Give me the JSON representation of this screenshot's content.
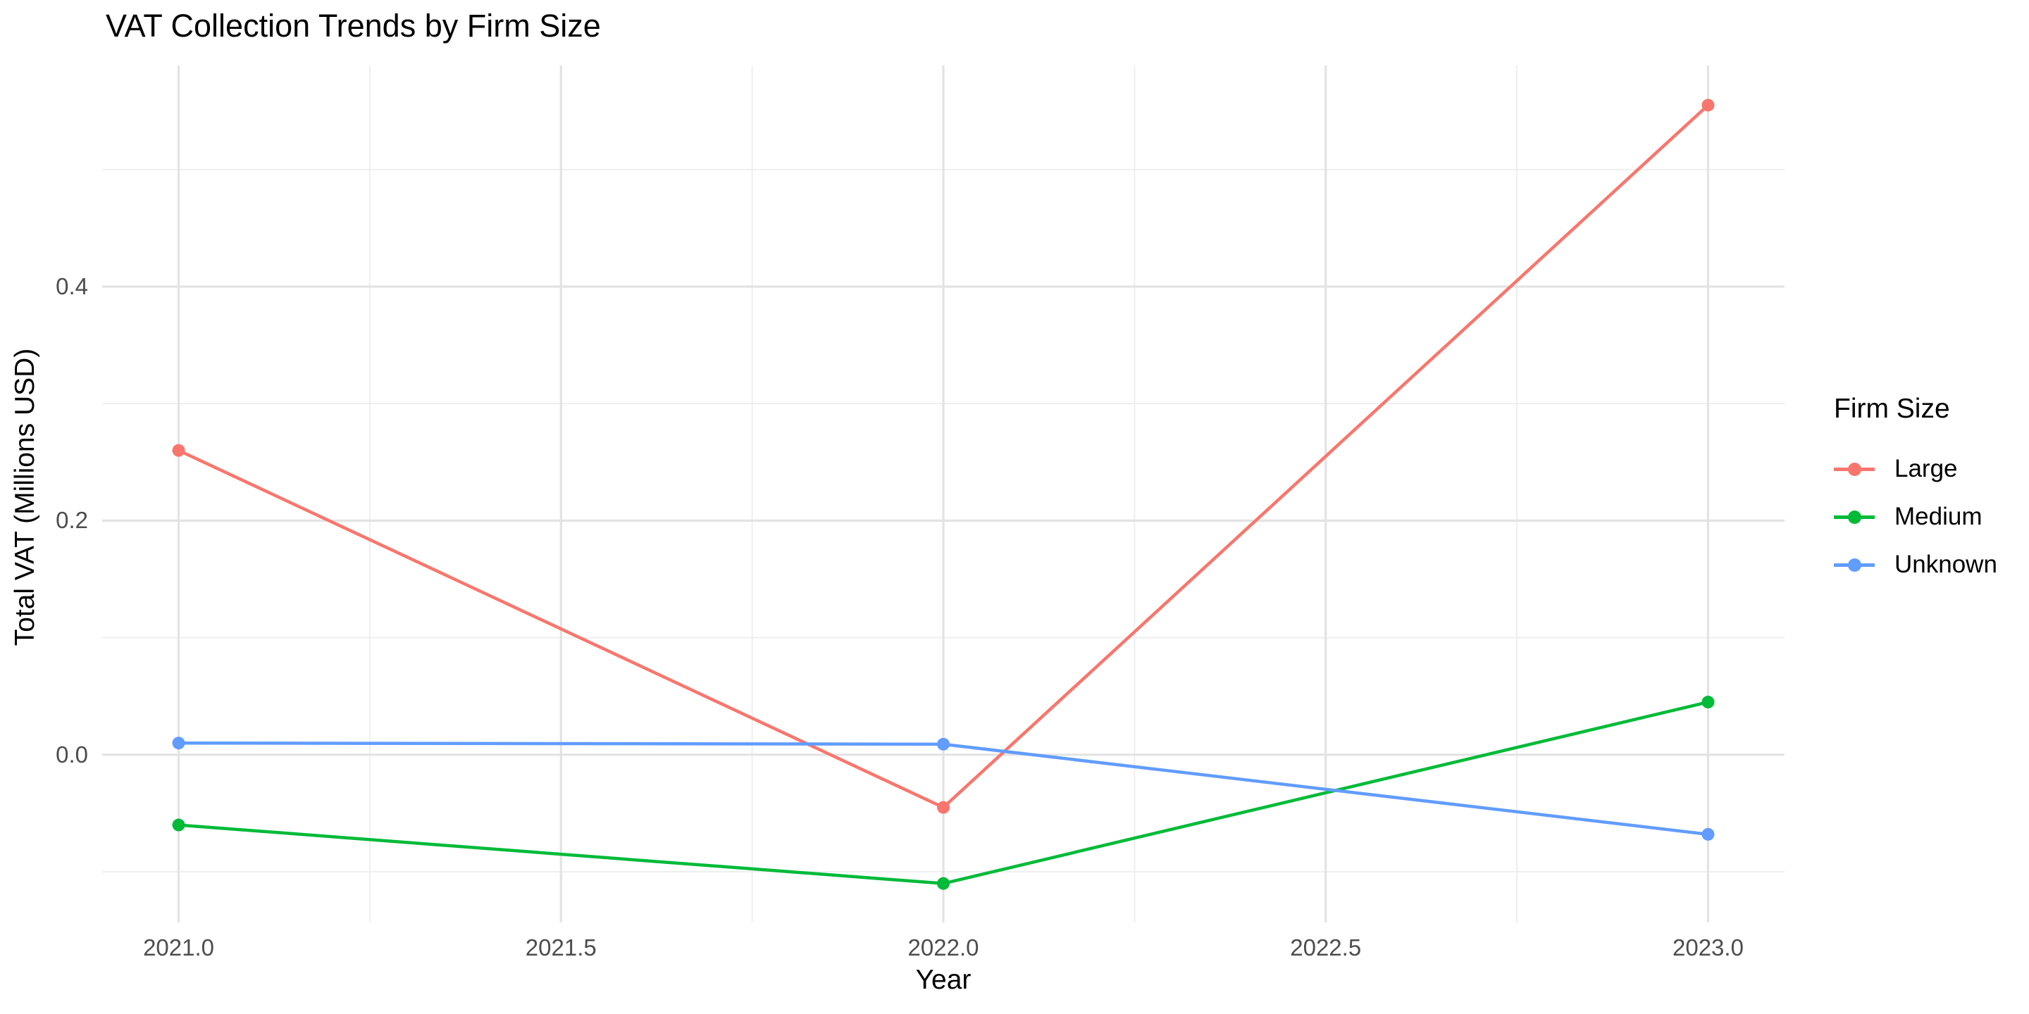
{
  "chart_data": {
    "type": "line",
    "title": "VAT Collection Trends by Firm Size",
    "xlabel": "Year",
    "ylabel": "Total VAT (Millions USD)",
    "legend_title": "Firm Size",
    "legend_position": "right",
    "grid": true,
    "x": [
      2021,
      2022,
      2023
    ],
    "series": [
      {
        "name": "Large",
        "color": "#F8766D",
        "values": [
          0.26,
          -0.045,
          0.555
        ]
      },
      {
        "name": "Medium",
        "color": "#00BA38",
        "values": [
          -0.06,
          -0.11,
          0.045
        ]
      },
      {
        "name": "Unknown",
        "color": "#619CFF",
        "values": [
          0.01,
          0.009,
          -0.068
        ]
      }
    ],
    "x_ticks": {
      "values": [
        2021.0,
        2021.5,
        2022.0,
        2022.5,
        2023.0
      ],
      "labels": [
        "2021.0",
        "2021.5",
        "2022.0",
        "2022.5",
        "2023.0"
      ]
    },
    "y_ticks": {
      "values": [
        0.0,
        0.2,
        0.4
      ],
      "labels": [
        "0.0",
        "0.2",
        "0.4"
      ]
    },
    "x_minor": [
      2021.25,
      2021.75,
      2022.25,
      2022.75
    ],
    "y_minor": [
      -0.1,
      0.1,
      0.3,
      0.5
    ],
    "xlim": [
      2020.9,
      2023.1
    ],
    "ylim": [
      -0.1433,
      0.5889
    ],
    "colors": {
      "background": "#FFFFFF",
      "grid_major": "#E3E3E3",
      "grid_minor": "#EDEDED",
      "tick_label": "#4D4D4D",
      "text": "#000000"
    }
  }
}
